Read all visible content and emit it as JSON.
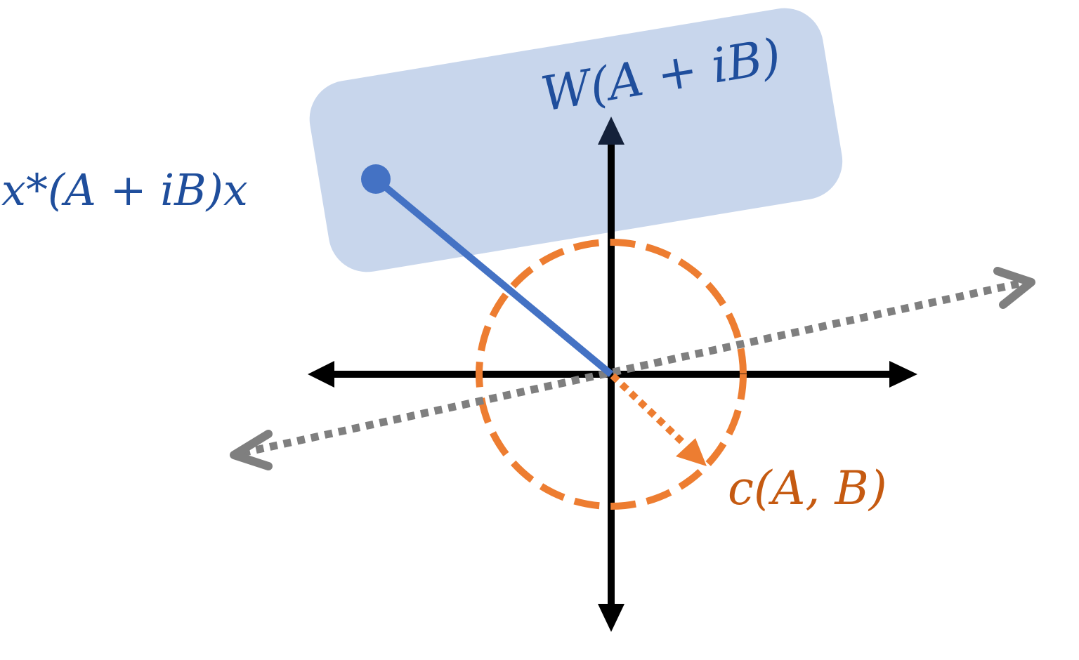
{
  "labels": {
    "quadratic_form": "x*(A + iB)x",
    "numerical_range": "W(A + iB)",
    "radius": "c(A, B)"
  },
  "colors": {
    "region_fill": "#c8d6ec",
    "blue": "#4472c4",
    "label_blue": "#1f4e9c",
    "orange": "#ed7d31",
    "label_orange": "#c55a11",
    "gray": "#7f7f7f",
    "axis": "#000000"
  }
}
